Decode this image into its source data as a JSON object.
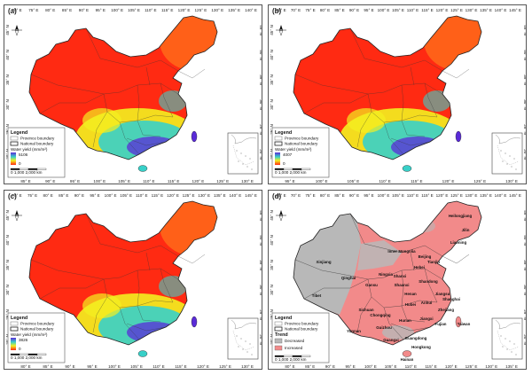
{
  "panels": [
    {
      "id": "a",
      "label": "(a)",
      "kind": "yield",
      "top_ticks": [
        "70° E",
        "75° E",
        "80° E",
        "85° E",
        "90° E",
        "95° E",
        "100° E",
        "105° E",
        "110° E",
        "115° E",
        "120° E",
        "125° E",
        "130° E",
        "135° E",
        "140° E"
      ],
      "bottom_ticks": [
        "85° E",
        "90° E",
        "95° E",
        "100° E",
        "105° E",
        "110° E",
        "115° E",
        "120° E",
        "125° E",
        "130° E"
      ],
      "left_ticks": [
        "45° N",
        "40° N",
        "35° N",
        "30° N",
        "25° N",
        "20° N"
      ],
      "right_ticks": [
        "45° N",
        "40° N",
        "35° N",
        "30° N",
        "25° N",
        "20° N"
      ],
      "legend": {
        "title": "Legend",
        "items": [
          "Province boundary",
          "National boundary"
        ],
        "scale_title": "Water yield (mm/m²)",
        "max": "5106",
        "min": "0"
      },
      "scalebar_label": "0  1,000  2,000 km",
      "colors": {
        "low": "#ff2a12",
        "mid": "#f3f020",
        "mid2": "#38d0c8",
        "high": "#5a2bd8"
      }
    },
    {
      "id": "b",
      "label": "(b)",
      "kind": "yield",
      "top_ticks": [
        "65° E",
        "70° E",
        "75° E",
        "80° E",
        "85° E",
        "90° E",
        "95° E",
        "100° E",
        "105° E",
        "110° E",
        "115° E",
        "120° E",
        "125° E",
        "130° E",
        "135° E",
        "140° E",
        "145° E"
      ],
      "bottom_ticks": [
        "95° E",
        "100° E",
        "105° E",
        "110° E",
        "115° E",
        "120° E",
        "125° E",
        "130° E"
      ],
      "left_ticks": [
        "45° N",
        "40° N",
        "35° N",
        "30° N",
        "25° N",
        "20° N"
      ],
      "right_ticks": [
        "45° N",
        "40° N",
        "35° N",
        "30° N",
        "25° N",
        "20° N"
      ],
      "legend": {
        "title": "Legend",
        "items": [
          "Province boundary",
          "National boundary"
        ],
        "scale_title": "Water yield (mm/m²)",
        "max": "4007",
        "min": "0"
      },
      "scalebar_label": "0  1,000  2,000 km",
      "colors": {
        "low": "#ff2a12",
        "mid": "#f3f020",
        "mid2": "#38d0c8",
        "high": "#5a2bd8"
      }
    },
    {
      "id": "c",
      "label": "(c)",
      "kind": "yield",
      "top_ticks": [
        "70° E",
        "75° E",
        "80° E",
        "85° E",
        "90° E",
        "95° E",
        "100° E",
        "105° E",
        "110° E",
        "115° E",
        "120° E",
        "125° E",
        "130° E",
        "135° E",
        "140° E",
        "145° E"
      ],
      "bottom_ticks": [
        "80° E",
        "85° E",
        "90° E",
        "95° E",
        "100° E",
        "105° E",
        "110° E",
        "115° E",
        "120° E",
        "125° E",
        "130° E"
      ],
      "left_ticks": [
        "45° N",
        "40° N",
        "35° N",
        "30° N",
        "25° N",
        "20° N"
      ],
      "right_ticks": [
        "45° N",
        "40° N",
        "35° N",
        "30° N",
        "25° N",
        "20° N"
      ],
      "legend": {
        "title": "Legend",
        "items": [
          "Province boundary",
          "National boundary"
        ],
        "scale_title": "Water yield (mm/m²)",
        "max": "3826",
        "min": "0"
      },
      "scalebar_label": "0  1,000  2,000 km",
      "colors": {
        "low": "#ff2a12",
        "mid": "#f3f020",
        "mid2": "#38d0c8",
        "high": "#5a2bd8"
      }
    },
    {
      "id": "d",
      "label": "(d)",
      "kind": "trend",
      "top_ticks": [
        "65° E",
        "70° E",
        "75° E",
        "80° E",
        "85° E",
        "90° E",
        "95° E",
        "100° E",
        "105° E",
        "110° E",
        "115° E",
        "120° E",
        "125° E",
        "130° E",
        "135° E",
        "140° E",
        "145° E"
      ],
      "bottom_ticks": [
        "80° E",
        "85° E",
        "90° E",
        "95° E",
        "100° E",
        "105° E",
        "110° E",
        "115° E",
        "120° E",
        "125° E",
        "130° E",
        "135° E"
      ],
      "left_ticks": [
        "45° N",
        "40° N",
        "35° N",
        "30° N",
        "25° N",
        "20° N"
      ],
      "right_ticks": [
        "45° N",
        "40° N",
        "35° N",
        "30° N",
        "25° N",
        "20° N"
      ],
      "legend": {
        "title": "Legend",
        "items": [
          "Province boundary",
          "National boundary"
        ],
        "scale_title": "Trend",
        "classes": [
          "Decreased",
          "Increased"
        ]
      },
      "scalebar_label": "0  1,000  2,000 km",
      "colors": {
        "decreased": "#b8b8b8",
        "increased": "#f28a8a"
      },
      "provinces": [
        "Heilongjiang",
        "Jilin",
        "Liaoning",
        "Inner Mongolia",
        "Beijing",
        "Tianjin",
        "Hebei",
        "Xinjiang",
        "Tibet",
        "Qinghai",
        "Gansu",
        "Ningxia",
        "Shanxi",
        "Shaanxi",
        "Henan",
        "Shandong",
        "Jiangsu",
        "Anhui",
        "Hubei",
        "Sichuan",
        "Chongqing",
        "Shanghai",
        "Zhejiang",
        "Jiangxi",
        "Hunan",
        "Guizhou",
        "Yunnan",
        "Guangxi",
        "Guangdong",
        "Fujian",
        "Taiwan",
        "Hongkong",
        "Hainan"
      ]
    }
  ]
}
